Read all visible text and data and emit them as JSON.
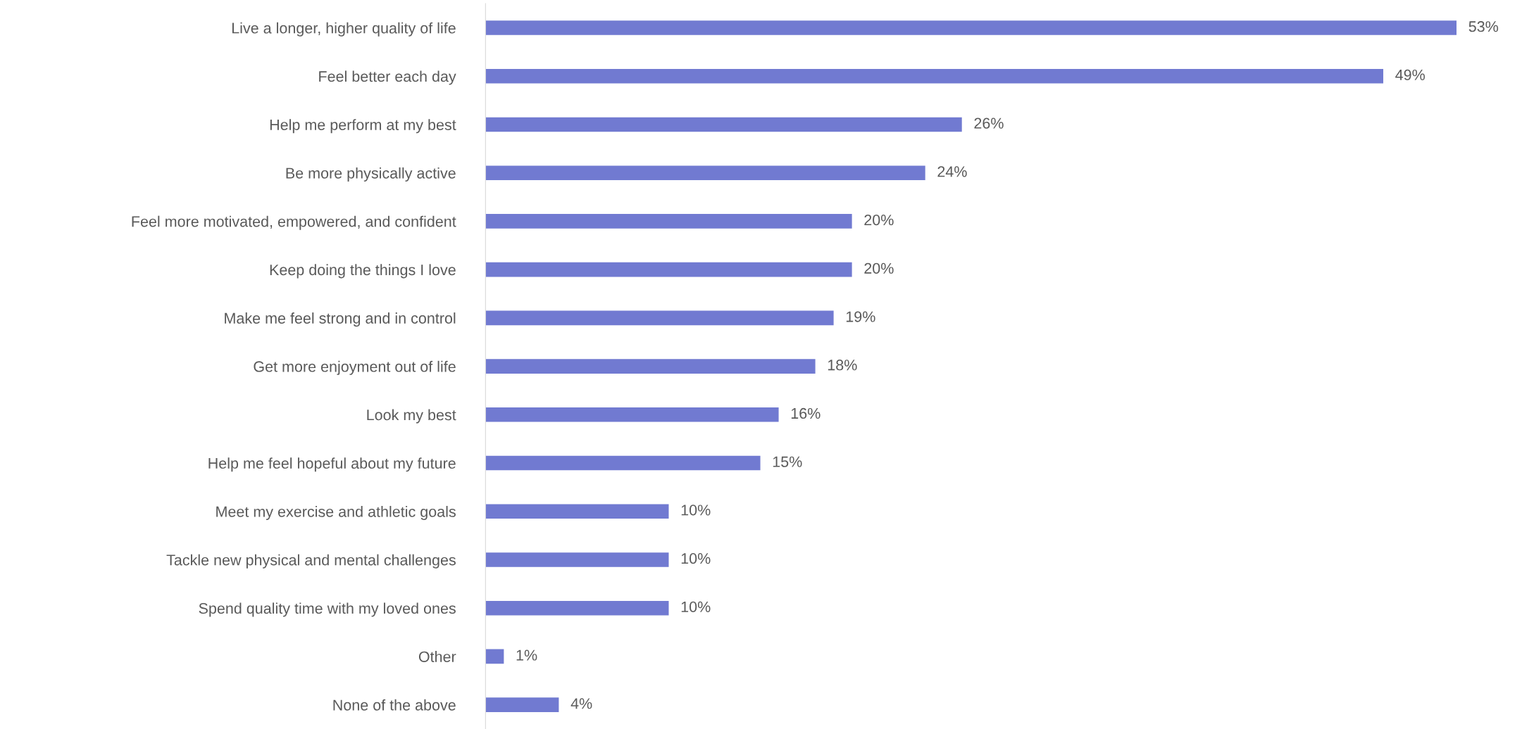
{
  "chart_data": {
    "type": "bar",
    "orientation": "horizontal",
    "categories": [
      "Live a longer, higher quality of life",
      "Feel better each day",
      "Help me perform at my best",
      "Be more physically active",
      "Feel more motivated, empowered, and confident",
      "Keep doing the things I love",
      "Make me feel strong and in control",
      "Get more enjoyment out of life",
      "Look my best",
      "Help me feel hopeful about my future",
      "Meet my exercise and athletic goals",
      "Tackle new physical and mental challenges",
      "Spend quality time with my loved ones",
      "Other",
      "None of the above"
    ],
    "values": [
      53,
      49,
      26,
      24,
      20,
      20,
      19,
      18,
      16,
      15,
      10,
      10,
      10,
      1,
      4
    ],
    "value_labels": [
      "53%",
      "49%",
      "26%",
      "24%",
      "20%",
      "20%",
      "19%",
      "18%",
      "16%",
      "15%",
      "10%",
      "10%",
      "10%",
      "1%",
      "4%"
    ],
    "color": "#717ad1",
    "grid": false,
    "legend": false
  }
}
